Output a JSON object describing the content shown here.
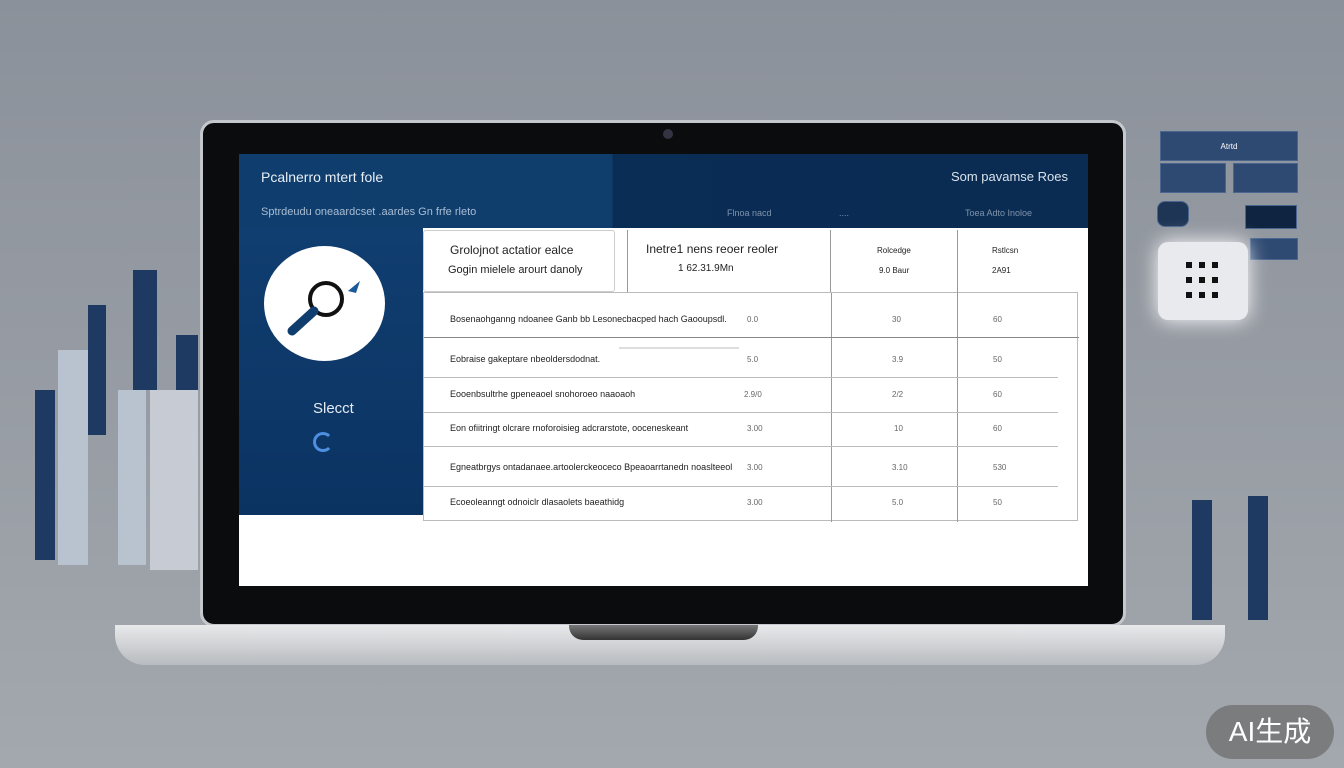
{
  "header": {
    "title": "Pcalnerro mtert fole",
    "subtitle": "Sptrdeudu oneaardcset .aardes Gn frfe rleto",
    "right_title": "Som pavamse Roes",
    "columns": [
      "Flnoa nacd",
      "....",
      "Toea Adto Inoloe"
    ]
  },
  "left_panel": {
    "select_label": "Slecct"
  },
  "cards": [
    {
      "line1": "Grolojnot actatior ealce",
      "line2": "Gogin mielele arourt danoly"
    },
    {
      "line1": "Inetre1 nens reoer reoler",
      "line2": "1 62.31.9Mn"
    },
    {
      "line1": "Rolcedge",
      "line2": "9.0 Baur"
    },
    {
      "line1": "Rstlcsn",
      "line2": "2A91"
    }
  ],
  "table": {
    "rows": [
      {
        "label": "Bosenaohganng ndoanee Ganb bb Lesonecbacped hach Gaooupsdl.",
        "c1": "0.0",
        "c2": "30",
        "c3": "60"
      },
      {
        "label": "Eobraise gakeptare nbeoldersdodnat.",
        "c1": "5.0",
        "c2": "3.9",
        "c3": "50"
      },
      {
        "label": "Eooenbsultrhe gpeneaoel snohoroeo naaoaoh",
        "c1": "2.9/0",
        "c2": "2/2",
        "c3": "60"
      },
      {
        "label": "Eon ofiitringt olcrare rnoforoisieg adcrarstote, ooceneskeant",
        "c1": "3.00",
        "c2": "10",
        "c3": "60"
      },
      {
        "label": "Egneatbrgys ontadanaee.artoolerckeoceco Bpeaoarrtanedn noaslteeol",
        "c1": "3.00",
        "c2": "3.10",
        "c3": "530"
      },
      {
        "label": "Ecoeoleanngt odnoiclr dlasaolets baeathidg",
        "c1": "3.00",
        "c2": "5.0",
        "c3": "50"
      }
    ]
  },
  "side_widget": {
    "label": "Atrtd"
  },
  "watermark": "AI生成",
  "colors": {
    "accent": "#0f3e6e",
    "dark_header": "#0a2b52",
    "background": "#979ca4"
  }
}
